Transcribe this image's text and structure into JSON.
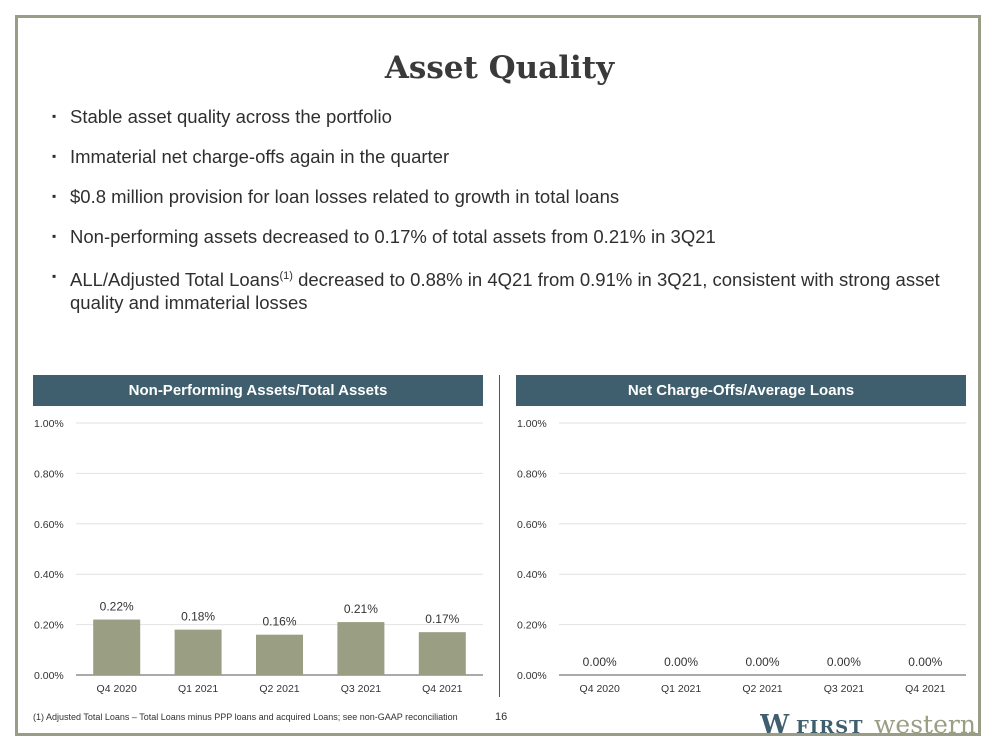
{
  "title": "Asset Quality",
  "bullets": [
    {
      "text": "Stable asset quality across the portfolio"
    },
    {
      "text": "Immaterial net charge-offs again in the quarter"
    },
    {
      "text": "$0.8 million provision for loan losses related to growth in total loans"
    },
    {
      "text": "Non-performing assets decreased to 0.17% of total assets from 0.21% in 3Q21"
    },
    {
      "pre": "ALL/Adjusted Total Loans",
      "sup": "(1)",
      "post": " decreased to 0.88% in 4Q21 from 0.91% in 3Q21, consistent with strong asset quality and immaterial losses"
    }
  ],
  "colors": {
    "bar": "#9a9e83",
    "header": "#3f5f6e",
    "frame": "#9a9c87"
  },
  "chart_data": [
    {
      "type": "bar",
      "title": "Non-Performing Assets/Total Assets",
      "categories": [
        "Q4 2020",
        "Q1 2021",
        "Q2 2021",
        "Q3 2021",
        "Q4 2021"
      ],
      "values": [
        0.22,
        0.18,
        0.16,
        0.21,
        0.17
      ],
      "value_labels": [
        "0.22%",
        "0.18%",
        "0.16%",
        "0.21%",
        "0.17%"
      ],
      "yticks": [
        "0.00%",
        "0.20%",
        "0.40%",
        "0.60%",
        "0.80%",
        "1.00%"
      ],
      "ylim": [
        0,
        1.0
      ],
      "grid": true
    },
    {
      "type": "bar",
      "title": "Net Charge-Offs/Average Loans",
      "categories": [
        "Q4 2020",
        "Q1 2021",
        "Q2 2021",
        "Q3 2021",
        "Q4 2021"
      ],
      "values": [
        0.0,
        0.0,
        0.0,
        0.0,
        0.0
      ],
      "value_labels": [
        "0.00%",
        "0.00%",
        "0.00%",
        "0.00%",
        "0.00%"
      ],
      "yticks": [
        "0.00%",
        "0.20%",
        "0.40%",
        "0.60%",
        "0.80%",
        "1.00%"
      ],
      "ylim": [
        0,
        1.0
      ],
      "grid": true
    }
  ],
  "footnote": "(1) Adjusted Total Loans – Total Loans minus PPP loans and acquired Loans; see non-GAAP reconciliation",
  "page_number": "16",
  "logo": {
    "mark": "W",
    "word1": "FIRST",
    "word2": "western"
  }
}
